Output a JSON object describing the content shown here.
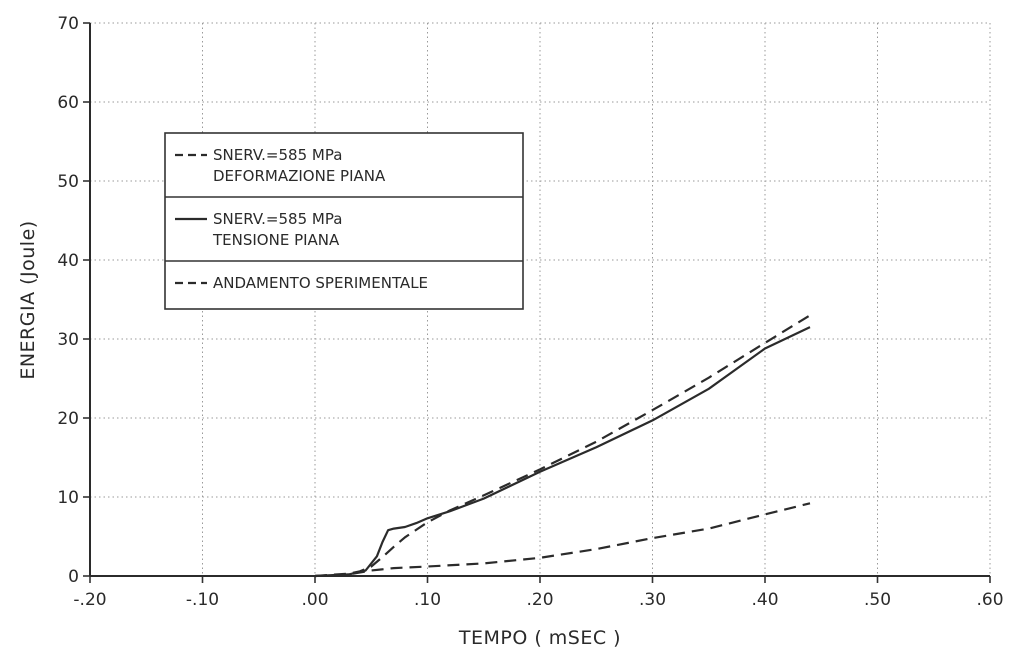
{
  "chart_data": {
    "type": "line",
    "title": "",
    "xlabel": "TEMPO ( mSEC )",
    "ylabel": "ENERGIA (Joule)",
    "xlim": [
      -0.2,
      0.6
    ],
    "ylim": [
      0,
      70
    ],
    "x_ticks": [
      -0.2,
      -0.1,
      0.0,
      0.1,
      0.2,
      0.3,
      0.4,
      0.5,
      0.6
    ],
    "x_tick_labels": [
      "-.20",
      "-.10",
      ".00",
      ".10",
      ".20",
      ".30",
      ".40",
      ".50",
      ".60"
    ],
    "y_ticks": [
      0,
      10,
      20,
      30,
      40,
      50,
      60,
      70
    ],
    "y_tick_labels": [
      "0",
      "10",
      "20",
      "30",
      "40",
      "50",
      "60",
      "70"
    ],
    "grid": true,
    "legend_position": "upper-left",
    "series": [
      {
        "name_lines": [
          "SNERV.=585 MPa",
          "DEFORMAZIONE PIANA"
        ],
        "style": "dashed",
        "x": [
          0.0,
          0.03,
          0.04,
          0.05,
          0.06,
          0.07,
          0.08,
          0.1,
          0.12,
          0.15,
          0.2,
          0.25,
          0.3,
          0.35,
          0.4,
          0.44
        ],
        "y": [
          0.0,
          0.3,
          0.6,
          1.2,
          2.4,
          3.7,
          4.9,
          6.8,
          8.3,
          10.2,
          13.5,
          17.0,
          21.0,
          25.1,
          29.5,
          33.0
        ]
      },
      {
        "name_lines": [
          "SNERV.=585 MPa",
          "TENSIONE PIANA"
        ],
        "style": "solid",
        "x": [
          0.0,
          0.03,
          0.045,
          0.055,
          0.06,
          0.065,
          0.07,
          0.08,
          0.09,
          0.1,
          0.12,
          0.15,
          0.2,
          0.25,
          0.3,
          0.35,
          0.4,
          0.44
        ],
        "y": [
          0.0,
          0.2,
          0.7,
          2.5,
          4.3,
          5.8,
          6.0,
          6.2,
          6.7,
          7.3,
          8.2,
          9.8,
          13.2,
          16.3,
          19.7,
          23.7,
          28.8,
          31.5
        ]
      },
      {
        "name_lines": [
          "ANDAMENTO SPERIMENTALE"
        ],
        "style": "dashed",
        "x": [
          0.0,
          0.03,
          0.05,
          0.07,
          0.1,
          0.15,
          0.2,
          0.25,
          0.3,
          0.35,
          0.4,
          0.44
        ],
        "y": [
          0.0,
          0.2,
          0.7,
          1.0,
          1.2,
          1.6,
          2.3,
          3.4,
          4.8,
          6.0,
          7.8,
          9.2
        ]
      }
    ]
  }
}
